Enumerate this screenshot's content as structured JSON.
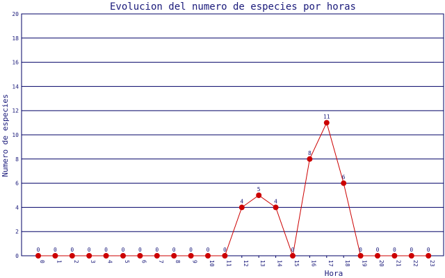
{
  "chart_data": {
    "type": "line",
    "title": "Evolucion del numero de especies por horas",
    "xlabel": "Hora",
    "ylabel": "Numero de especies",
    "categories": [
      "0",
      "1",
      "2",
      "3",
      "4",
      "5",
      "6",
      "7",
      "8",
      "9",
      "10",
      "11",
      "12",
      "13",
      "14",
      "15",
      "16",
      "17",
      "18",
      "19",
      "20",
      "21",
      "22",
      "23"
    ],
    "series": [
      {
        "values": [
          0,
          0,
          0,
          0,
          0,
          0,
          0,
          0,
          0,
          0,
          0,
          0,
          4,
          5,
          4,
          0,
          8,
          11,
          6,
          0,
          0,
          0,
          0,
          0
        ]
      }
    ],
    "ylim": [
      0,
      20
    ],
    "yticks": [
      0,
      2,
      4,
      6,
      8,
      10,
      12,
      14,
      16,
      18,
      20
    ],
    "grid": true,
    "legend": "none"
  },
  "colors": {
    "line": "#cc0000",
    "marker": "#cc0000",
    "grid": "#000066",
    "text": "#1a1a7a"
  }
}
